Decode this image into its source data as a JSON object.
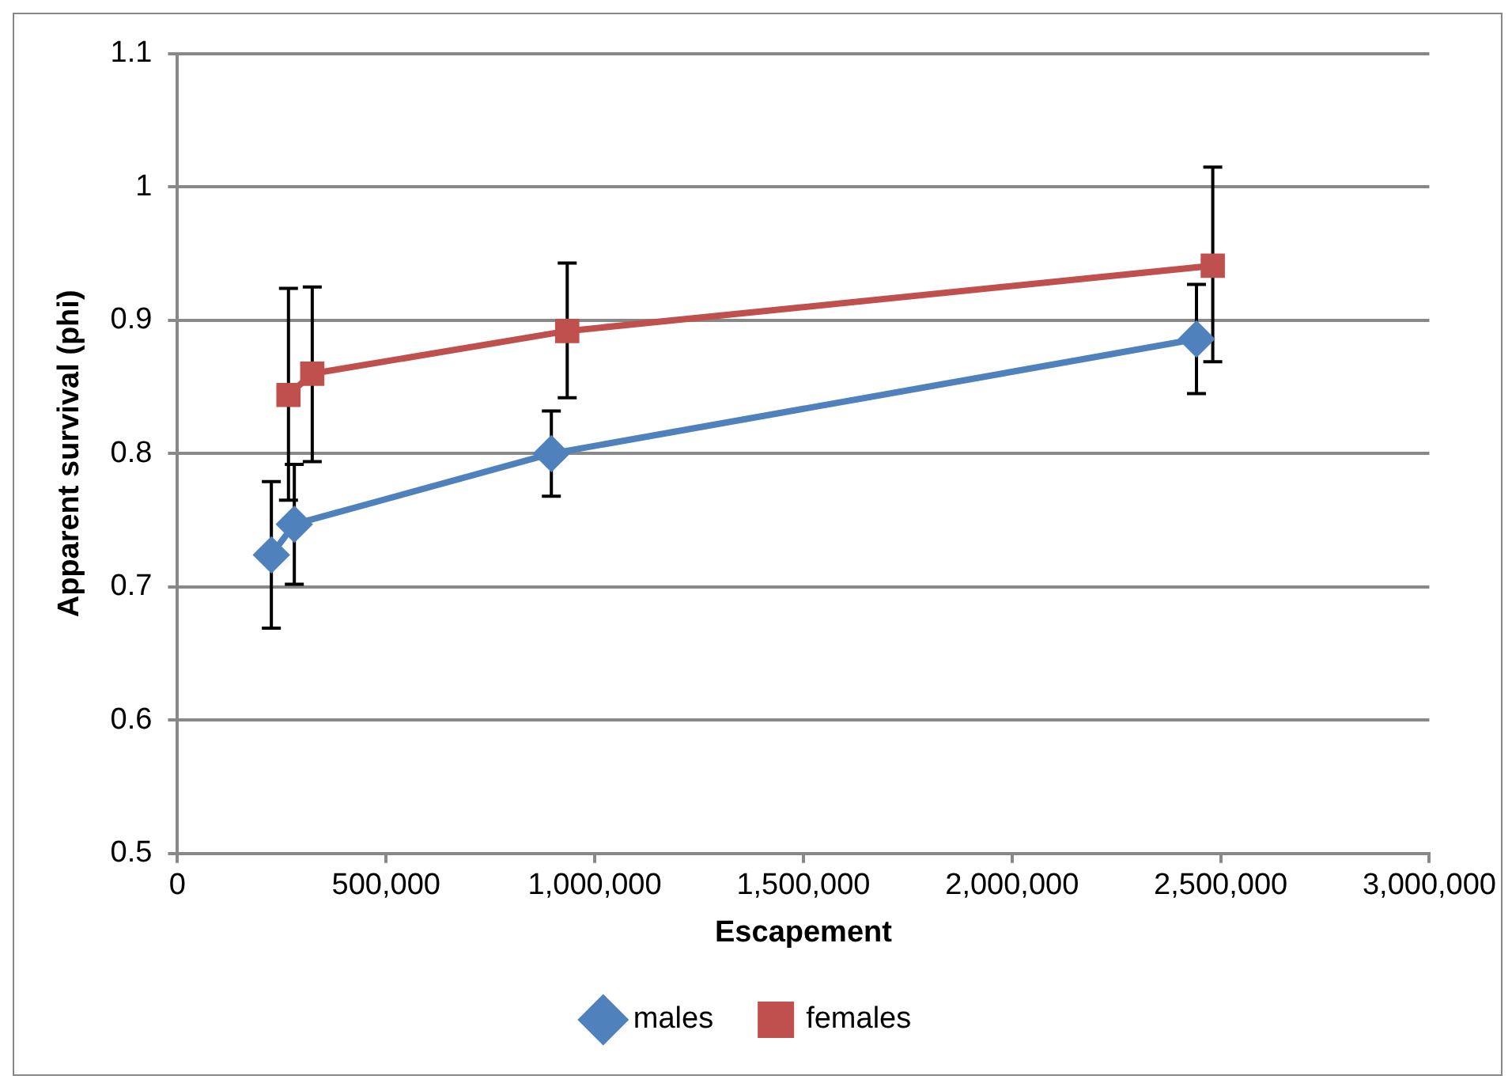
{
  "chart_data": {
    "type": "line",
    "xlabel": "Escapement",
    "ylabel": "Apparent survival (phi)",
    "xlim": [
      0,
      3000000
    ],
    "xticks": [
      {
        "value": 0,
        "label": "0"
      },
      {
        "value": 500000,
        "label": "500,000"
      },
      {
        "value": 1000000,
        "label": "1,000,000"
      },
      {
        "value": 1500000,
        "label": "1,500,000"
      },
      {
        "value": 2000000,
        "label": "2,000,000"
      },
      {
        "value": 2500000,
        "label": "2,500,000"
      },
      {
        "value": 3000000,
        "label": "3,000,000"
      }
    ],
    "ylim": [
      0.5,
      1.1
    ],
    "yticks": [
      0.5,
      0.6,
      0.7,
      0.8,
      0.9,
      1,
      1.1
    ],
    "grid": "y",
    "legend": "bottom",
    "series": [
      {
        "name": "males",
        "color": "#4f81bd",
        "marker": "diamond",
        "x": [
          225000,
          280000,
          896000,
          2442000
        ],
        "values": [
          0.724,
          0.747,
          0.8,
          0.886
        ],
        "errors": [
          [
            0.669,
            0.779
          ],
          [
            0.702,
            0.792
          ],
          [
            0.768,
            0.832
          ],
          [
            0.845,
            0.927
          ]
        ]
      },
      {
        "name": "females",
        "color": "#c0504d",
        "marker": "square",
        "x": [
          266000,
          323000,
          934000,
          2481000
        ],
        "values": [
          0.844,
          0.86,
          0.892,
          0.941
        ],
        "errors": [
          [
            0.765,
            0.924
          ],
          [
            0.794,
            0.925
          ],
          [
            0.842,
            0.943
          ],
          [
            0.869,
            1.015
          ]
        ]
      }
    ]
  }
}
